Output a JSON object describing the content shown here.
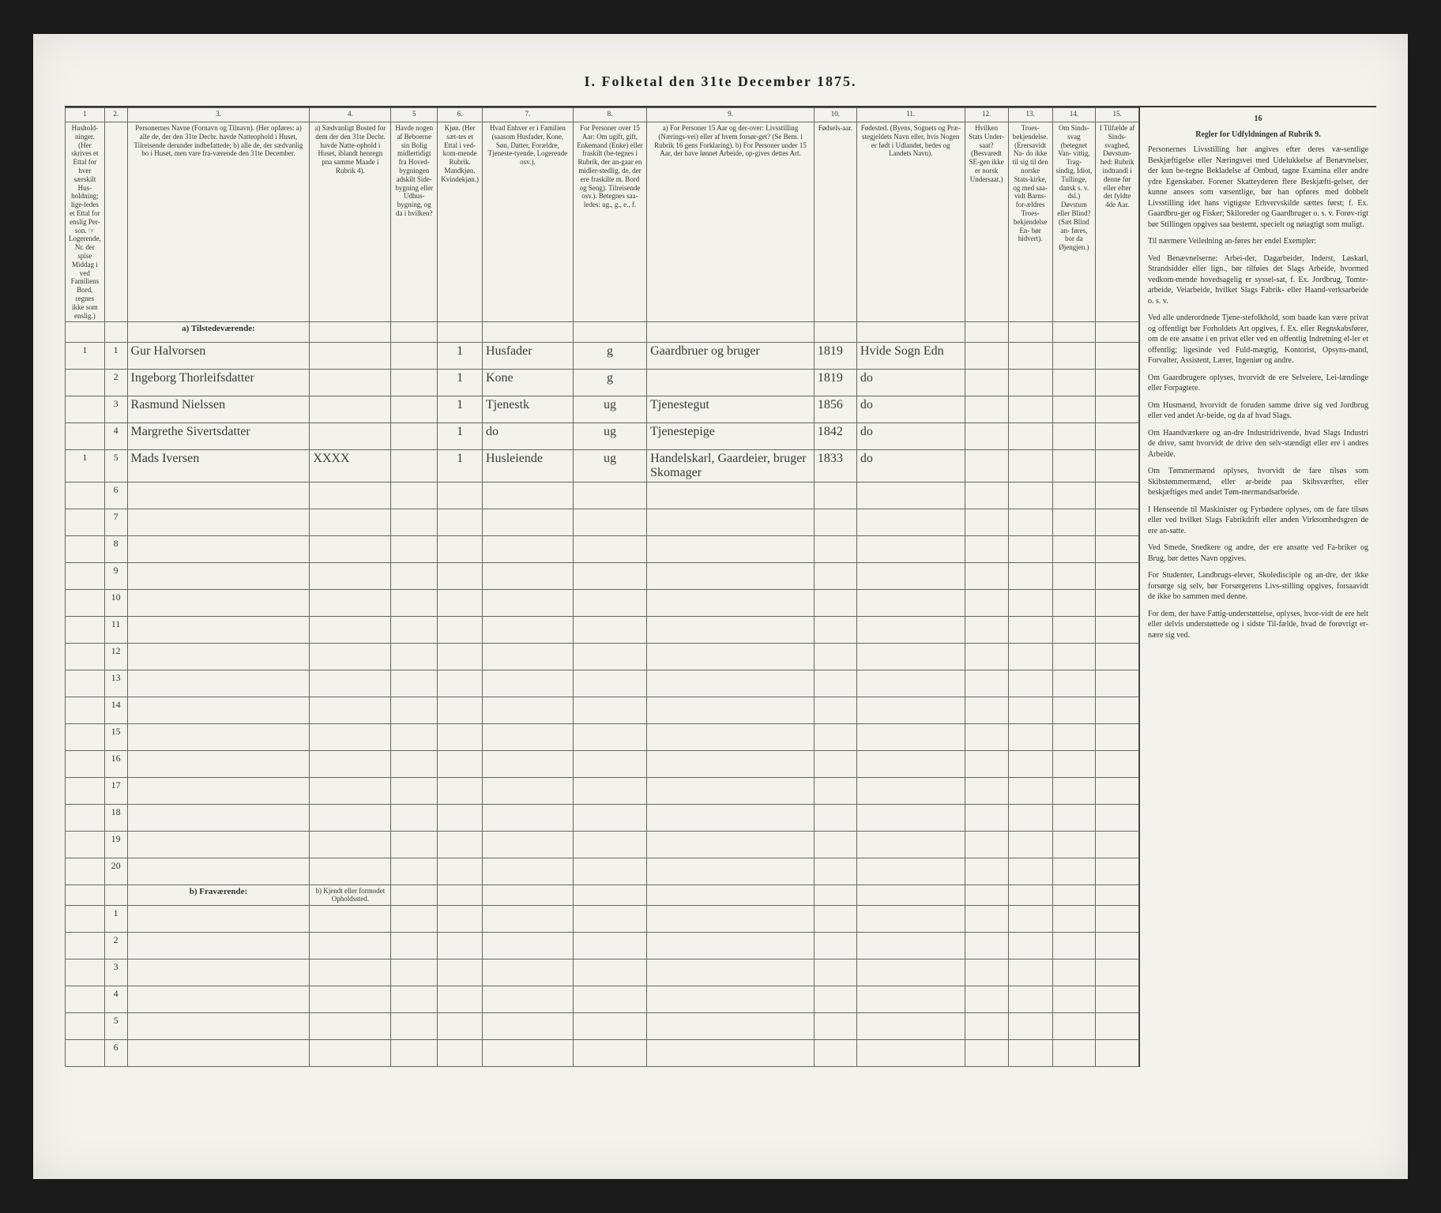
{
  "title": "I.  Folketal  den 31te December 1875.",
  "colNumbers": [
    "1",
    "2.",
    "3.",
    "4.",
    "5",
    "6.",
    "7.",
    "8.",
    "9.",
    "10.",
    "11.",
    "12.",
    "13.",
    "14.",
    "15."
  ],
  "headers": {
    "c1": "Hushold-ninger. (Her skrives et Ettal for hver særskilt Hus-holdning; lige-ledes et Ettal for enslig Per-son. ☞ Logerende, Nr. der spise Middag i ved Familiens Bord, regnes ikke som enslig.)",
    "c2": "",
    "c3": "Personernes Navne (Fornavn og Tilnavn).\n(Her opføres:\na) alle de, der den 31te Decbr. havde Natteophold i Huset, Tilreisende derunder indbefattede;\nb) alle de, der sædvanlig bo i Huset, men vare fra-værende den 31te December.",
    "c4": "a) Sædvanligt Bosted for dem der den 31te Decbr. havde Natte-ophold i Huset, iblandt henregn pna samme Maade i Rubrik 4).",
    "c5": "Havde nogen af Beboerne sin Bolig midlertidigt fra Hoved-bygningen adskilt Side-bygning eller Udhus-bygning, og da i hvilken?",
    "c6": "Kjøn. (Her sæt-tes et Ettal i ved-kom-mende Rubrik.  Mandkjøn. Kvindekjøn.)",
    "c7": "Hvad Enhver er i Familien (saasom Husfader, Kone, Søn, Datter, Forældre, Tjeneste-tyende, Logerende osv.).",
    "c8": "For Personer over 15 Aar: Om ugift, gift, Enkemand (Enke) eller fraskilt (be-tegnes i Rubrik, der an-gaar en midler-stedlig, de, der ere fraskilte m. Bord og Seng). Tilreisende osv.). Betegnes saa-ledes: ug., g., e., f.",
    "c9": "a) For Personer 15 Aar og der-over: Livsstilling (Nærings-vei) eller af hvem forsør-get? (Se Bem. i Rubrik 16 gens Forklaring).\nb) For Personer under 15 Aar, der have lønnet Arbeide, op-gives dettes Art.",
    "c10": "Fødsels-aar.",
    "c11": "Fødested.\n(Byens, Sognets og Præ-stegjeldets Navn eller, hvis Nogen er født i Udlandet, bedes og Landets Navn).",
    "c12": "Hvilken Stats Under-saat? (Besvaredt SE-gen ikke er norsk Undersaat.)",
    "c13": "Troes-bekjendelse. (Erersavidt Na- do ikke til sig til den norske Stats-kirke, og med saa-vidt Barns- for-ældres Troes-bekjendelse En- bør hidvert).",
    "c14": "Om Sinds-svag (betegnet Van- vittig, Trag- sindig, Idiot, Tullinge, dansk s. v. dsl.) Døvstum eller Blind? (Sæt Blind an- føres, bor da Øjengjen.)",
    "c15": "I Tilfælde af Sinds-svaghed, Døvstum-hed: Rubrik indtrandl i denne før eller efter det fyldte 4de Aar."
  },
  "sectionA": "a) Tilstedeværende:",
  "sectionB": "b) Fraværende:",
  "sectionB_col4": "b) Kjendt eller formodet Opholdssted.",
  "rows": [
    {
      "hh": "1",
      "n": "1",
      "name": "Gur Halvorsen",
      "c4": "",
      "c5": "",
      "sex": "1",
      "role": "Husfader",
      "civ": "g",
      "occ": "Gaardbruer og bruger",
      "year": "1819",
      "place": "Hvide Sogn Edn"
    },
    {
      "hh": "",
      "n": "2",
      "name": "Ingeborg Thorleifsdatter",
      "c4": "",
      "c5": "",
      "sex": "1",
      "role": "Kone",
      "civ": "g",
      "occ": "",
      "year": "1819",
      "place": "do"
    },
    {
      "hh": "",
      "n": "3",
      "name": "Rasmund Nielssen",
      "c4": "",
      "c5": "",
      "sex": "1",
      "role": "Tjenestk",
      "civ": "ug",
      "occ": "Tjenestegut",
      "year": "1856",
      "place": "do"
    },
    {
      "hh": "",
      "n": "4",
      "name": "Margrethe Sivertsdatter",
      "c4": "",
      "c5": "",
      "sex": "1",
      "role": "do",
      "civ": "ug",
      "occ": "Tjenestepige",
      "year": "1842",
      "place": "do"
    },
    {
      "hh": "1",
      "n": "5",
      "name": "Mads Iversen",
      "c4": "XXXX",
      "c5": "",
      "sex": "1",
      "role": "Husleiende",
      "civ": "ug",
      "occ": "Handelskarl, Gaardeier, bruger Skomager",
      "year": "1833",
      "place": "do"
    }
  ],
  "emptyA": [
    "6",
    "7",
    "8",
    "9",
    "10",
    "11",
    "12",
    "13",
    "14",
    "15",
    "16",
    "17",
    "18",
    "19",
    "20"
  ],
  "emptyB": [
    "1",
    "2",
    "3",
    "4",
    "5",
    "6"
  ],
  "rightCol": {
    "header": "16",
    "title": "Regler for Udfyldningen\naf\nRubrik 9.",
    "body": [
      "Personernes Livsstilling bør angives efter deres væ-sentlige Beskjæftigelse eller Næringsvei med Udelukkelse af Benævnelser, der kun be-tegne Bekladelse af Ombud, tagne Examina eller andre ydre Egenskaber. Forener Skatteyderen flere Beskjæfti-gelser, der kunne ansees som væsentlige, bør han opføres med dobbelt Livsstilling idet hans vigtigste Erhvervskilde sættes først; f. Ex. Gaardbru-ger og Fisker; Skiloreder og Gaardbruger o. s. v. Forøv-rigt bør Stillingen opgives saa bestemt, specielt og nøiagtigt som muligt.",
      "Til nærmere Veiledning an-føres her endel Exempler:",
      "Ved Benævnelserne: Arbei-der, Dagarbeider, Inderst, Løskarl, Strandsidder eller lign., bør tilføies det Slags Arbeide, hvormed vedkom-mende hovedsagelig er syssel-sat, f. Ex. Jordbrug, Tomte-arbeide, Veiarbeide, hvilket Slags Fabrik- eller Haand-verksarbeide o. s. v.",
      "Ved alle underordnede Tjene-stefolkhold, som baade kan være privat og offentligt bør Forholdets Art opgives, f. Ex. eller Regnskabsfører, om de ere ansatte i en privat eller ved en offentlig Indretning el-ler et offentlig; ligesinde ved Fuld-mægtig, Kontorist, Opsyns-mand, Forvalter, Assistent, Lærer, Ingeniør og andre.",
      "Om Gaardbrugere oplyses, hvorvidt de ere Selveiere, Lei-lændinge eller Forpagtere.",
      "Om Husmænd, hvorvidt de foruden samme drive sig ved Jordbrug eller ved andet Ar-beide, og da af hvad Slags.",
      "Om Haandværkere og an-dre Industridrivende, hvad Slags Industri de drive, samt hvorvidt de drive den selv-stændigt eller ere i andres Arbeide.",
      "Om Tømmermænd oplyses, hvorvidt de fare tilsøs som Skibstømmermænd, eller ar-beide paa Skibsværfter, eller beskjæftiges med andet Tøm-mermandsarbeide.",
      "I Henseende til Maskinister og Fyrbødere oplyses, om de fare tilsøs eller ved hvilket Slags Fabrikdrift eller anden Virksomhedsgren de ere an-satte.",
      "Ved Smede, Snedkere og andre, der ere ansatte ved Fa-briker og Brug, bør dettes Navn opgives.",
      "For Studenter, Landbrugs-elever, Skoledisciple og an-dre, der ikke forsørge sig selv, bør Forsørgerens Livs-stilling opgives, forsaavidt de ikke bo sammen med denne.",
      "For dem, der have Fattig-understøttelse, oplyses, hvor-vidt de ere helt eller delvis understøttede og i sidste Til-fælde, hvad de forøvrigt er-nære sig ved."
    ]
  }
}
